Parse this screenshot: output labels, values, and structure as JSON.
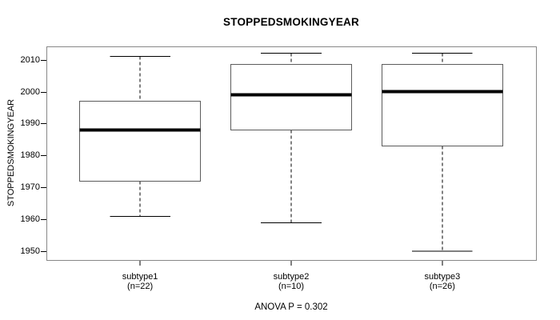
{
  "chart_data": {
    "type": "boxplot",
    "title": "STOPPEDSMOKINGYEAR",
    "ylabel": "STOPPEDSMOKINGYEAR",
    "annotation": "ANOVA P = 0.302",
    "y_axis": {
      "min": 1947.3,
      "max": 2014.15,
      "ticks": [
        1950,
        1960,
        1970,
        1980,
        1990,
        2000,
        2010
      ]
    },
    "x_axis": {
      "min": 0.38,
      "max": 3.62
    },
    "box_width": 0.8,
    "cap_width": 0.4,
    "grid": false,
    "groups": [
      {
        "label": "subtype1",
        "count_label": "(n=22)",
        "n": 22,
        "position": 1,
        "whisker_low": 1961,
        "q1": 1972,
        "median": 1988,
        "q3": 1997,
        "whisker_high": 2011
      },
      {
        "label": "subtype2",
        "count_label": "(n=10)",
        "n": 10,
        "position": 2,
        "whisker_low": 1959,
        "q1": 1988,
        "median": 1999,
        "q3": 2008.5,
        "whisker_high": 2012
      },
      {
        "label": "subtype3",
        "count_label": "(n=26)",
        "n": 26,
        "position": 3,
        "whisker_low": 1950,
        "q1": 1983,
        "median": 2000,
        "q3": 2008.5,
        "whisker_high": 2012
      }
    ],
    "colors": {
      "frame": "#878787",
      "box_border": "#5c5c5c",
      "box_fill": "#ffffff",
      "line": "#000000",
      "median": "#000000",
      "text": "#000000",
      "background": "#ffffff"
    }
  }
}
